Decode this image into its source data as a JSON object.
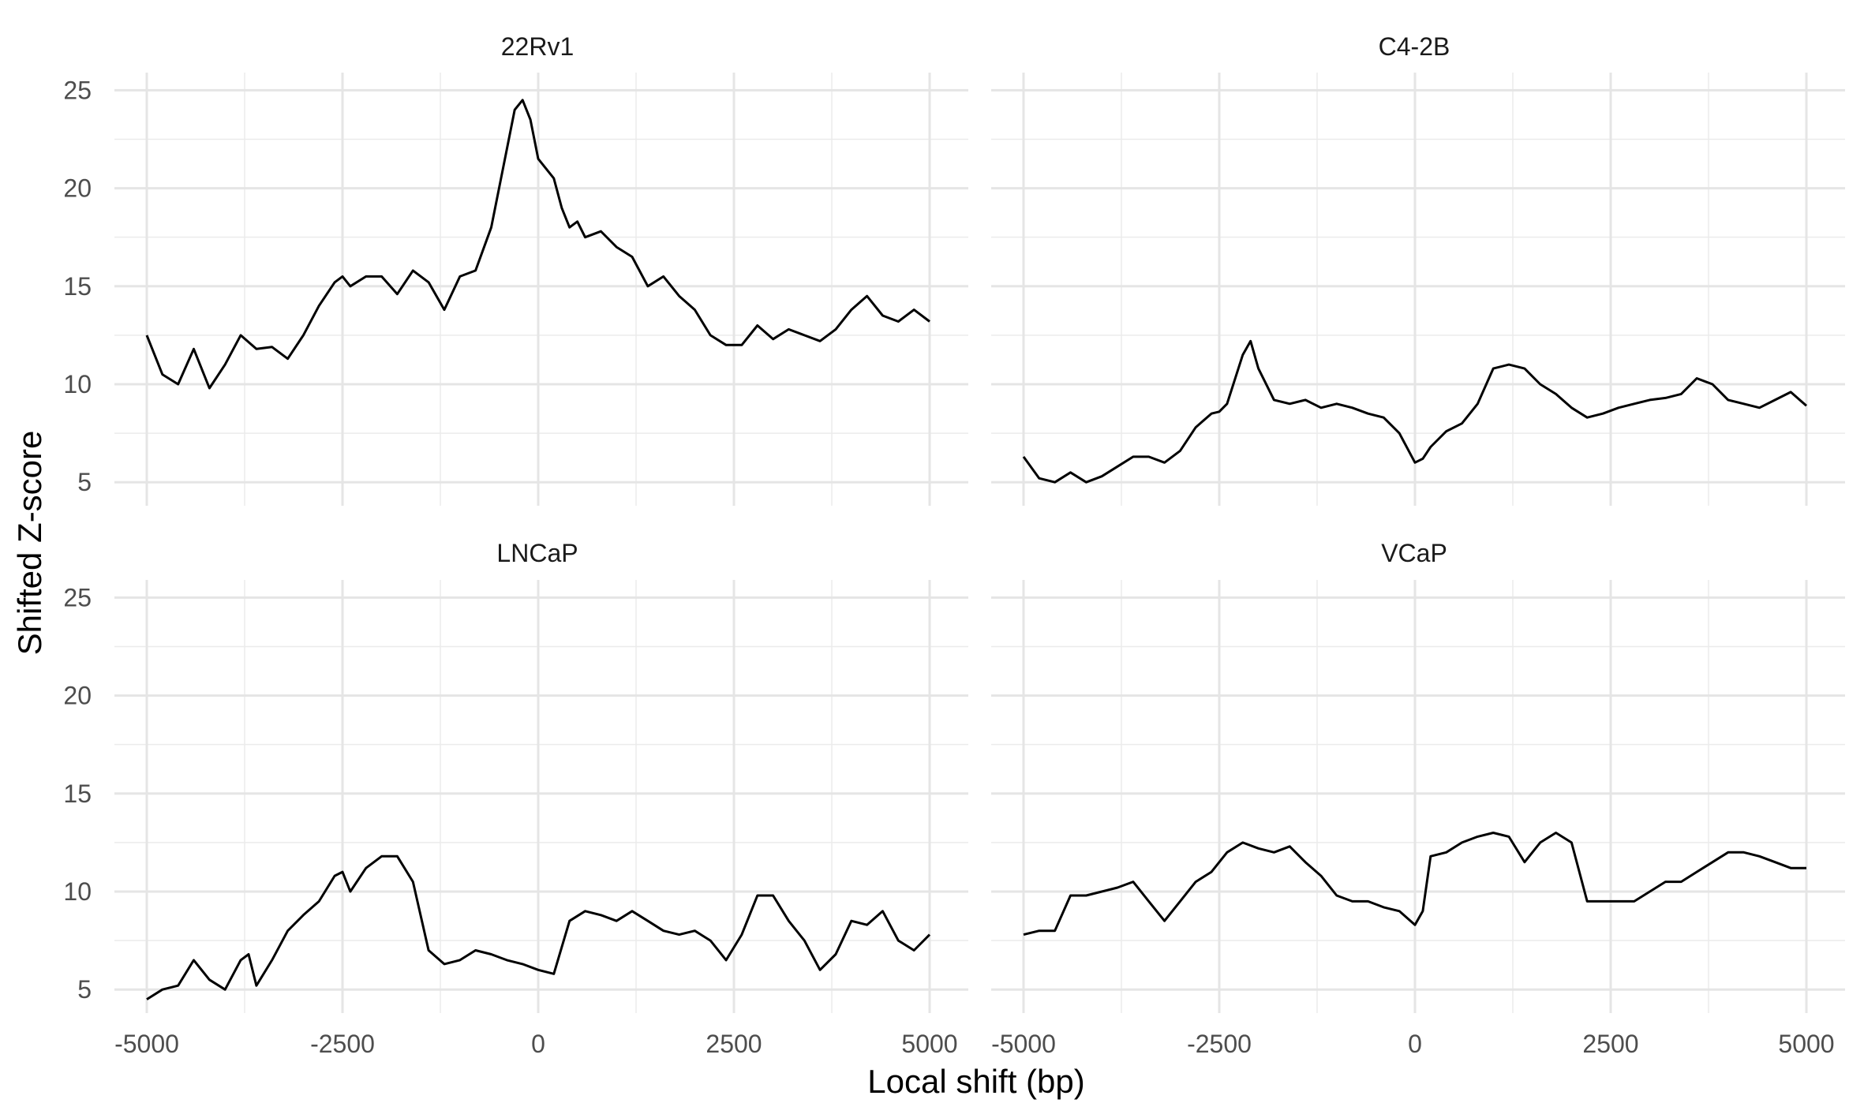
{
  "chart_data": {
    "type": "line",
    "xlabel": "Local shift (bp)",
    "ylabel": "Shifted Z-score",
    "xlim": [
      -5000,
      5000
    ],
    "ylim": [
      3.8,
      25.9
    ],
    "x_ticks": [
      -5000,
      -2500,
      0,
      2500,
      5000
    ],
    "x_tick_labels": [
      "-5000",
      "-2500",
      "0",
      "2500",
      "5000"
    ],
    "y_ticks": [
      5,
      10,
      15,
      20,
      25
    ],
    "y_tick_labels": [
      "5",
      "10",
      "15",
      "20",
      "25"
    ],
    "grid": true,
    "line_color": "#000000",
    "panels": [
      {
        "name": "22Rv1",
        "x": [
          -5000,
          -4800,
          -4600,
          -4400,
          -4200,
          -4000,
          -3800,
          -3600,
          -3400,
          -3200,
          -3000,
          -2800,
          -2600,
          -2500,
          -2400,
          -2200,
          -2000,
          -1800,
          -1600,
          -1400,
          -1200,
          -1000,
          -800,
          -600,
          -400,
          -300,
          -200,
          -100,
          0,
          100,
          200,
          300,
          400,
          500,
          600,
          800,
          1000,
          1200,
          1400,
          1600,
          1800,
          2000,
          2200,
          2400,
          2600,
          2800,
          3000,
          3200,
          3400,
          3600,
          3800,
          4000,
          4200,
          4400,
          4600,
          4800,
          5000
        ],
        "y": [
          12.5,
          10.5,
          10.0,
          11.8,
          9.8,
          11.0,
          12.5,
          11.8,
          11.9,
          11.3,
          12.5,
          14.0,
          15.2,
          15.5,
          15.0,
          15.5,
          15.5,
          14.6,
          15.8,
          15.2,
          13.8,
          15.5,
          15.8,
          18.0,
          22.0,
          24.0,
          24.5,
          23.5,
          21.5,
          21.0,
          20.5,
          19.0,
          18.0,
          18.3,
          17.5,
          17.8,
          17.0,
          16.5,
          15.0,
          15.5,
          14.5,
          13.8,
          12.5,
          12.0,
          12.0,
          13.0,
          12.3,
          12.8,
          12.5,
          12.2,
          12.8,
          13.8,
          14.5,
          13.5,
          13.2,
          13.8,
          13.2
        ]
      },
      {
        "name": "C4-2B",
        "x": [
          -5000,
          -4800,
          -4600,
          -4400,
          -4200,
          -4000,
          -3800,
          -3600,
          -3400,
          -3200,
          -3000,
          -2800,
          -2600,
          -2500,
          -2400,
          -2200,
          -2100,
          -2000,
          -1800,
          -1600,
          -1400,
          -1200,
          -1000,
          -800,
          -600,
          -400,
          -200,
          0,
          100,
          200,
          400,
          600,
          800,
          1000,
          1200,
          1400,
          1600,
          1800,
          2000,
          2200,
          2400,
          2600,
          2800,
          3000,
          3200,
          3400,
          3600,
          3800,
          4000,
          4200,
          4400,
          4600,
          4800,
          5000
        ],
        "y": [
          6.3,
          5.2,
          5.0,
          5.5,
          5.0,
          5.3,
          5.8,
          6.3,
          6.3,
          6.0,
          6.6,
          7.8,
          8.5,
          8.6,
          9.0,
          11.5,
          12.2,
          10.8,
          9.2,
          9.0,
          9.2,
          8.8,
          9.0,
          8.8,
          8.5,
          8.3,
          7.5,
          6.0,
          6.2,
          6.8,
          7.6,
          8.0,
          9.0,
          10.8,
          11.0,
          10.8,
          10.0,
          9.5,
          8.8,
          8.3,
          8.5,
          8.8,
          9.0,
          9.2,
          9.3,
          9.5,
          10.3,
          10.0,
          9.2,
          9.0,
          8.8,
          9.2,
          9.6,
          8.9
        ]
      },
      {
        "name": "LNCaP",
        "x": [
          -5000,
          -4800,
          -4600,
          -4400,
          -4200,
          -4000,
          -3800,
          -3700,
          -3600,
          -3400,
          -3200,
          -3000,
          -2800,
          -2600,
          -2500,
          -2400,
          -2200,
          -2000,
          -1800,
          -1600,
          -1400,
          -1200,
          -1000,
          -800,
          -600,
          -400,
          -200,
          0,
          200,
          400,
          600,
          800,
          1000,
          1200,
          1400,
          1600,
          1800,
          2000,
          2200,
          2400,
          2600,
          2800,
          3000,
          3200,
          3400,
          3600,
          3800,
          4000,
          4200,
          4400,
          4600,
          4800,
          5000
        ],
        "y": [
          4.5,
          5.0,
          5.2,
          6.5,
          5.5,
          5.0,
          6.5,
          6.8,
          5.2,
          6.5,
          8.0,
          8.8,
          9.5,
          10.8,
          11.0,
          10.0,
          11.2,
          11.8,
          11.8,
          10.5,
          7.0,
          6.3,
          6.5,
          7.0,
          6.8,
          6.5,
          6.3,
          6.0,
          5.8,
          8.5,
          9.0,
          8.8,
          8.5,
          9.0,
          8.5,
          8.0,
          7.8,
          8.0,
          7.5,
          6.5,
          7.8,
          9.8,
          9.8,
          8.5,
          7.5,
          6.0,
          6.8,
          8.5,
          8.3,
          9.0,
          7.5,
          7.0,
          7.8
        ]
      },
      {
        "name": "VCaP",
        "x": [
          -5000,
          -4800,
          -4600,
          -4400,
          -4200,
          -4000,
          -3800,
          -3600,
          -3400,
          -3200,
          -3000,
          -2800,
          -2600,
          -2400,
          -2200,
          -2000,
          -1800,
          -1600,
          -1400,
          -1200,
          -1000,
          -800,
          -600,
          -400,
          -200,
          0,
          100,
          200,
          400,
          600,
          800,
          1000,
          1200,
          1400,
          1600,
          1800,
          2000,
          2200,
          2400,
          2600,
          2800,
          3000,
          3200,
          3400,
          3600,
          3800,
          4000,
          4200,
          4400,
          4600,
          4800,
          5000
        ],
        "y": [
          7.8,
          8.0,
          8.0,
          9.8,
          9.8,
          10.0,
          10.2,
          10.5,
          9.5,
          8.5,
          9.5,
          10.5,
          11.0,
          12.0,
          12.5,
          12.2,
          12.0,
          12.3,
          11.5,
          10.8,
          9.8,
          9.5,
          9.5,
          9.2,
          9.0,
          8.3,
          9.0,
          11.8,
          12.0,
          12.5,
          12.8,
          13.0,
          12.8,
          11.5,
          12.5,
          13.0,
          12.5,
          9.5,
          9.5,
          9.5,
          9.5,
          10.0,
          10.5,
          10.5,
          11.0,
          11.5,
          12.0,
          12.0,
          11.8,
          11.5,
          11.2,
          11.2
        ]
      }
    ]
  }
}
